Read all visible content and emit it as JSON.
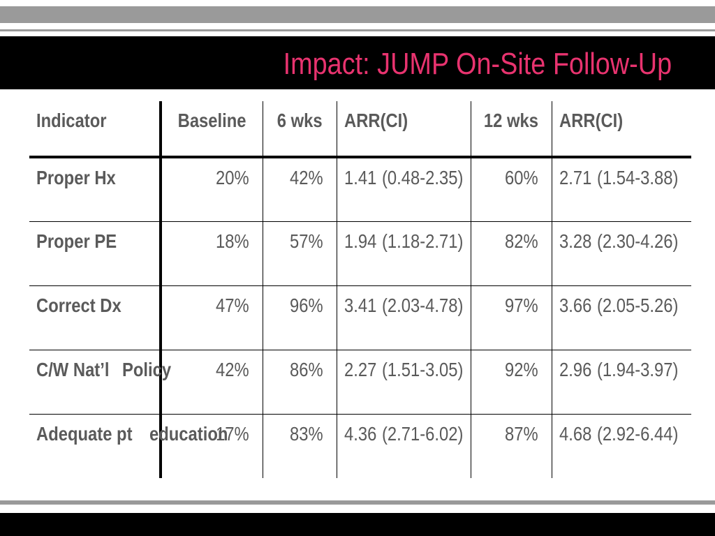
{
  "slide": {
    "title": "Impact: JUMP On-Site Follow-Up"
  },
  "table": {
    "headers": {
      "indicator": "Indicator",
      "baseline": "Baseline",
      "wk6": "6 wks",
      "arr1": "ARR(CI)",
      "wk12": "12 wks",
      "arr2": "ARR(CI)"
    },
    "rows": [
      {
        "indicator_l1": "Proper Hx",
        "indicator_l2": "",
        "baseline": "20%",
        "wk6": "42%",
        "arr1_val": "1.41",
        "arr1_ci": "(0.48-2.35)",
        "wk12": "60%",
        "arr2_val": "2.71",
        "arr2_ci": "(1.54-3.88)"
      },
      {
        "indicator_l1": "Proper PE",
        "indicator_l2": "",
        "baseline": "18%",
        "wk6": "57%",
        "arr1_val": "1.94",
        "arr1_ci": "(1.18-2.71)",
        "wk12": "82%",
        "arr2_val": "3.28",
        "arr2_ci": "(2.30-4.26)"
      },
      {
        "indicator_l1": "Correct Dx",
        "indicator_l2": "",
        "baseline": "47%",
        "wk6": "96%",
        "arr1_val": "3.41",
        "arr1_ci": "(2.03-4.78)",
        "wk12": "97%",
        "arr2_val": "3.66",
        "arr2_ci": "(2.05-5.26)"
      },
      {
        "indicator_l1": "C/W Nat’l",
        "indicator_l2": "Policy",
        "baseline": "42%",
        "wk6": "86%",
        "arr1_val": "2.27",
        "arr1_ci": "(1.51-3.05)",
        "wk12": "92%",
        "arr2_val": "2.96",
        "arr2_ci": "(1.94-3.97)"
      },
      {
        "indicator_l1": "Adequate pt",
        "indicator_l2": "education",
        "baseline": "17%",
        "wk6": "83%",
        "arr1_val": "4.36",
        "arr1_ci": "(2.71-6.02)",
        "wk12": "87%",
        "arr2_val": "4.68",
        "arr2_ci": "(2.92-6.44)"
      }
    ]
  },
  "colors": {
    "title": "#e8336f",
    "text": "#5a5a5a",
    "band_gray": "#9a9a9a",
    "band_black": "#000000"
  }
}
